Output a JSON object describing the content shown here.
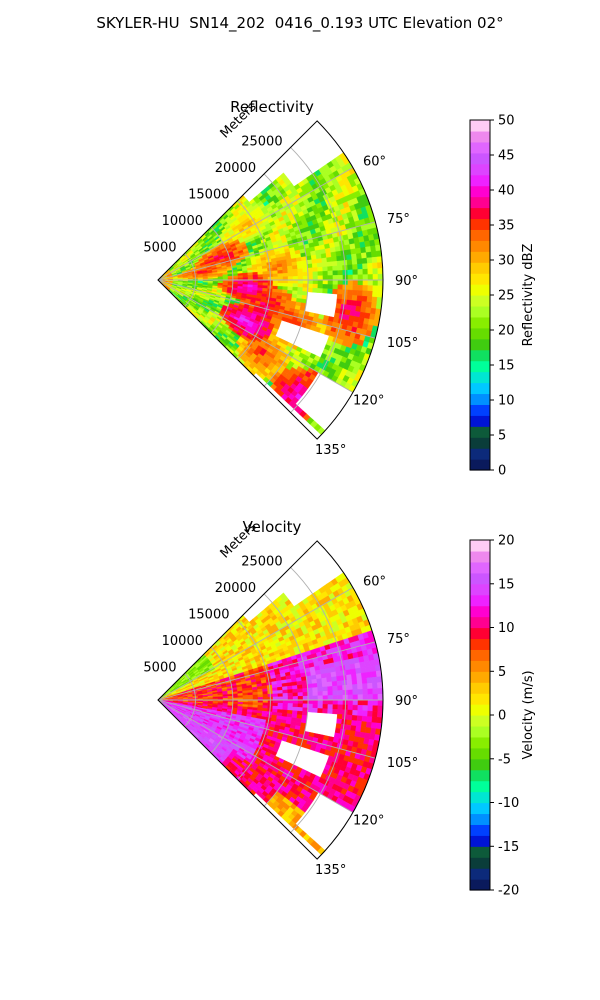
{
  "title": "SKYLER-HU  SN14_202  0416_0.193 UTC Elevation 02°",
  "chart_data": [
    {
      "type": "heatmap",
      "subtype": "polar-sector (radar PPI)",
      "title": "Reflectivity",
      "radial_label": "Meters",
      "radial_ticks": [
        "5000",
        "10000",
        "15000",
        "20000",
        "25000"
      ],
      "radial_values": [
        5000,
        10000,
        15000,
        20000,
        25000
      ],
      "range_max": 30000,
      "angular_ticks": [
        "60°",
        "75°",
        "90°",
        "105°",
        "120°",
        "135°"
      ],
      "angular_values": [
        60,
        75,
        90,
        105,
        120,
        135
      ],
      "angle_range": [
        45,
        135
      ],
      "grid": true,
      "colorbar": {
        "label": "Reflectivity dBZ",
        "ticks": [
          "0",
          "5",
          "10",
          "15",
          "20",
          "25",
          "30",
          "35",
          "40",
          "45",
          "50"
        ],
        "range": [
          0,
          50
        ],
        "colors": [
          "#0a1a5c",
          "#0c2a7a",
          "#0a3d3a",
          "#0d5a3a",
          "#0014d6",
          "#0040ff",
          "#0090ff",
          "#00c8ff",
          "#00e6d2",
          "#00ff9a",
          "#10e060",
          "#40cc10",
          "#66dd00",
          "#88ee00",
          "#aaff22",
          "#ccff22",
          "#eeff00",
          "#ffe600",
          "#ffcc00",
          "#ffaa00",
          "#ff8800",
          "#ff6600",
          "#ff3300",
          "#ff0033",
          "#ff0090",
          "#ff00d0",
          "#ee22ff",
          "#dd44ff",
          "#cc55ff",
          "#e066ff",
          "#ee88ee",
          "#ffccf5"
        ]
      },
      "field_note": "dominant 20-25 dBZ (yellow-green) with scattered 30-42 dBZ cells"
    },
    {
      "type": "heatmap",
      "subtype": "polar-sector (radar PPI)",
      "title": "Velocity",
      "radial_label": "Meters",
      "radial_ticks": [
        "5000",
        "10000",
        "15000",
        "20000",
        "25000"
      ],
      "radial_values": [
        5000,
        10000,
        15000,
        20000,
        25000
      ],
      "range_max": 30000,
      "angular_ticks": [
        "60°",
        "75°",
        "90°",
        "105°",
        "120°",
        "135°"
      ],
      "angular_values": [
        60,
        75,
        90,
        105,
        120,
        135
      ],
      "angle_range": [
        45,
        135
      ],
      "grid": true,
      "colorbar": {
        "label": "Velocity (m/s)",
        "ticks": [
          "-20",
          "-15",
          "-10",
          "-5",
          "0",
          "5",
          "10",
          "15",
          "20"
        ],
        "range": [
          -20,
          20
        ],
        "colors": [
          "#0a1a5c",
          "#0c2a7a",
          "#0a3d3a",
          "#0d5a3a",
          "#0014d6",
          "#0040ff",
          "#0090ff",
          "#00c8ff",
          "#00e6d2",
          "#00ff9a",
          "#10e060",
          "#40cc10",
          "#66dd00",
          "#88ee00",
          "#aaff22",
          "#ccff22",
          "#eeff00",
          "#ffe600",
          "#ffcc00",
          "#ffaa00",
          "#ff8800",
          "#ff6600",
          "#ff3300",
          "#ff0033",
          "#ff0090",
          "#ff00d0",
          "#ee22ff",
          "#dd44ff",
          "#cc55ff",
          "#e066ff",
          "#ee88ee",
          "#ffccf5"
        ]
      },
      "field_note": "mostly 5-12 m/s (orange-red), 13-17 m/s (magenta) to the south, 0-3 m/s (yellow) to the north-east"
    }
  ]
}
